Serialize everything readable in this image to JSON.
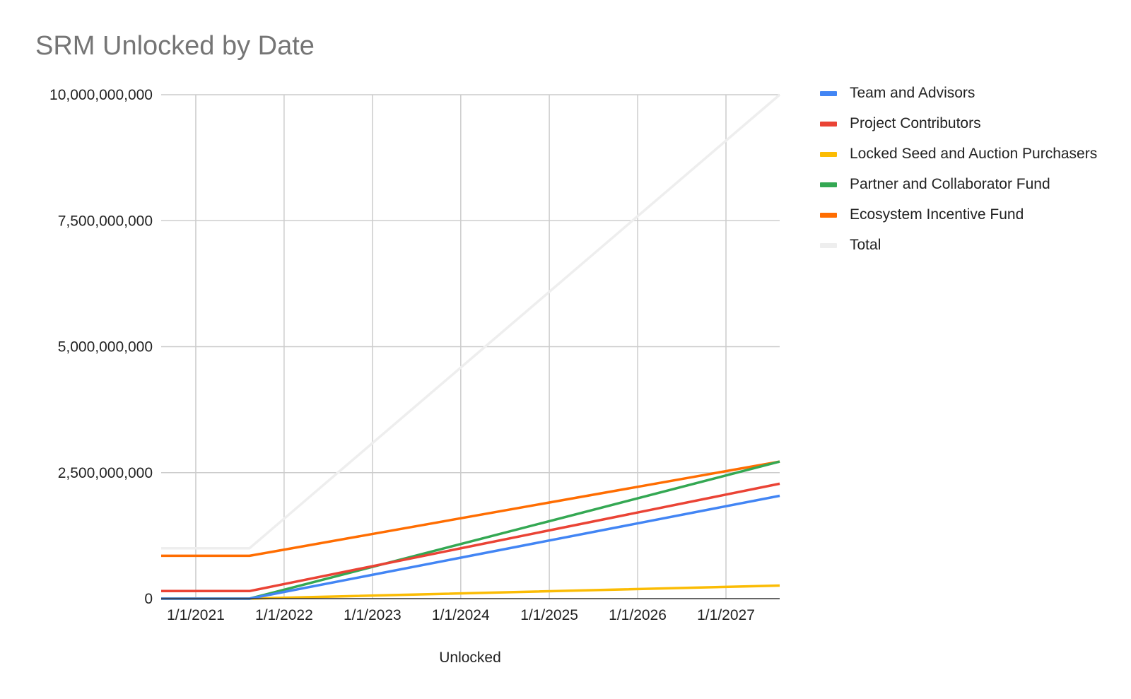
{
  "chart_data": {
    "type": "line",
    "title": "SRM Unlocked by Date",
    "xlabel": "Unlocked",
    "ylabel": "",
    "ylim": [
      0,
      10000000000
    ],
    "yticks": [
      0,
      2500000000,
      5000000000,
      7500000000,
      10000000000
    ],
    "ytick_labels": [
      "0",
      "2,500,000,000",
      "5,000,000,000",
      "7,500,000,000",
      "10,000,000,000"
    ],
    "xlim": [
      "2020-08-11",
      "2027-08-11"
    ],
    "xticks": [
      "2021-01-01",
      "2022-01-01",
      "2023-01-01",
      "2024-01-01",
      "2025-01-01",
      "2026-01-01",
      "2027-01-01"
    ],
    "xtick_labels": [
      "1/1/2021",
      "1/1/2022",
      "1/1/2023",
      "1/1/2024",
      "1/1/2025",
      "1/1/2026",
      "1/1/2027"
    ],
    "x": [
      "2020-08-11",
      "2021-08-11",
      "2027-08-11"
    ],
    "grid": true,
    "legend_position": "right",
    "series": [
      {
        "name": "Team and Advisors",
        "color": "#4285f4",
        "values": [
          0,
          0,
          2040000000
        ]
      },
      {
        "name": "Project Contributors",
        "color": "#ea4335",
        "values": [
          150000000,
          150000000,
          2280000000
        ]
      },
      {
        "name": "Locked Seed and Auction Purchasers",
        "color": "#fbbc04",
        "values": [
          0,
          0,
          260000000
        ]
      },
      {
        "name": "Partner and Collaborator Fund",
        "color": "#34a853",
        "values": [
          0,
          0,
          2720000000
        ]
      },
      {
        "name": "Ecosystem Incentive Fund",
        "color": "#ff6d01",
        "values": [
          850000000,
          850000000,
          2720000000
        ]
      },
      {
        "name": "Total",
        "color": "#eeeeee",
        "values": [
          1000000000,
          1000000000,
          10000000000
        ]
      }
    ]
  }
}
